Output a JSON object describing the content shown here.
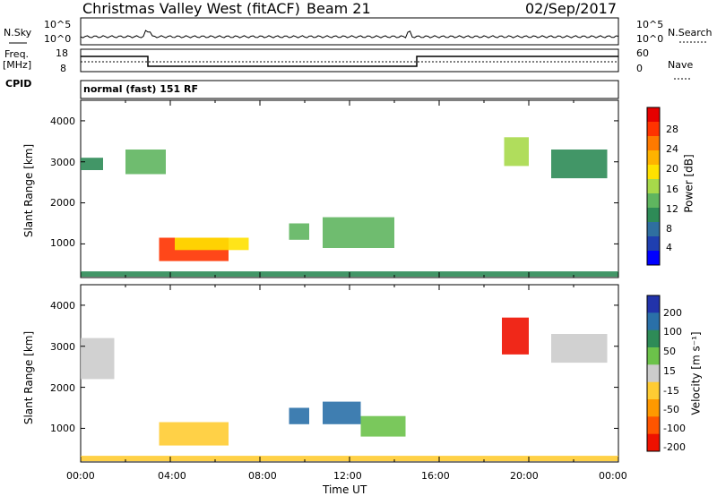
{
  "header": {
    "station": "Christmas Valley West (fitACF)",
    "beam": "Beam 21",
    "date": "02/Sep/2017"
  },
  "strip_panels": {
    "nsky_label": "N.Sky",
    "nsearch_label": "N.Search",
    "freq_label_line1": "Freq.",
    "freq_label_line2": "[MHz]",
    "nave_label": "Nave",
    "cpid_label": "CPID",
    "cpid_value": "normal (fast) 151 RF",
    "noise_ticks": [
      "10^5",
      "10^0"
    ],
    "freq_ticks": [
      "18",
      "8"
    ],
    "nave_ticks": [
      "60",
      "0"
    ]
  },
  "axes": {
    "ylabel": "Slant Range [km]",
    "xlabel": "Time UT",
    "y_ticks": [
      "4000",
      "3000",
      "2000",
      "1000"
    ],
    "x_ticks": [
      "00:00",
      "04:00",
      "08:00",
      "12:00",
      "16:00",
      "20:00",
      "00:00"
    ]
  },
  "colorbars": {
    "power": {
      "label": "Power [dB]",
      "ticks": [
        "28",
        "24",
        "20",
        "16",
        "12",
        "8",
        "4"
      ],
      "colors": [
        "#e60000",
        "#ff3300",
        "#ff7a00",
        "#ffb300",
        "#ffe100",
        "#a7d94a",
        "#5fb55f",
        "#2e8b57",
        "#2f6fa0",
        "#1f3fb0",
        "#0000ff"
      ]
    },
    "velocity": {
      "label": "Velocity [m s⁻¹]",
      "ticks": [
        "200",
        "100",
        "50",
        "15",
        "-15",
        "-50",
        "-100",
        "-200"
      ],
      "colors": [
        "#2233aa",
        "#2a70a8",
        "#2e8b57",
        "#6cc24a",
        "#cccccc",
        "#ffcc33",
        "#ff9900",
        "#ff5500",
        "#ee1100"
      ]
    }
  },
  "chart_data": [
    {
      "type": "heatmap",
      "name": "power",
      "x_range": [
        "00:00",
        "24:00"
      ],
      "ylim": [
        180,
        4500
      ],
      "value_range": [
        0,
        30
      ],
      "regions": [
        {
          "t0": 3.5,
          "t1": 6.6,
          "r0": 580,
          "r1": 1150,
          "value": 26
        },
        {
          "t0": 4.2,
          "t1": 7.5,
          "r0": 850,
          "r1": 1150,
          "value": 19
        },
        {
          "t0": 9.3,
          "t1": 10.2,
          "r0": 1100,
          "r1": 1500,
          "value": 12
        },
        {
          "t0": 10.8,
          "t1": 14.0,
          "r0": 900,
          "r1": 1650,
          "value": 13
        },
        {
          "t0": 2.0,
          "t1": 3.8,
          "r0": 2700,
          "r1": 3300,
          "value": 11
        },
        {
          "t0": 0.0,
          "t1": 1.0,
          "r0": 2800,
          "r1": 3100,
          "value": 9
        },
        {
          "t0": 18.9,
          "t1": 20.0,
          "r0": 2900,
          "r1": 3600,
          "value": 14
        },
        {
          "t0": 21.0,
          "t1": 23.5,
          "r0": 2600,
          "r1": 3300,
          "value": 10
        },
        {
          "t0": 0.0,
          "t1": 24.0,
          "r0": 200,
          "r1": 330,
          "value": 10
        }
      ]
    },
    {
      "type": "heatmap",
      "name": "velocity",
      "x_range": [
        "00:00",
        "24:00"
      ],
      "ylim": [
        180,
        4500
      ],
      "value_range": [
        -200,
        200
      ],
      "regions": [
        {
          "t0": 3.5,
          "t1": 6.6,
          "r0": 580,
          "r1": 1150,
          "value": -40
        },
        {
          "t0": 9.3,
          "t1": 10.2,
          "r0": 1100,
          "r1": 1500,
          "value": 150
        },
        {
          "t0": 10.8,
          "t1": 12.5,
          "r0": 1100,
          "r1": 1650,
          "value": 120
        },
        {
          "t0": 12.5,
          "t1": 14.5,
          "r0": 800,
          "r1": 1300,
          "value": 30
        },
        {
          "t0": 18.8,
          "t1": 20.0,
          "r0": 2800,
          "r1": 3700,
          "value": -200
        },
        {
          "t0": 21.0,
          "t1": 23.5,
          "r0": 2600,
          "r1": 3300,
          "value": 5
        },
        {
          "t0": 0.0,
          "t1": 1.5,
          "r0": 2200,
          "r1": 3200,
          "value": 5
        },
        {
          "t0": 0.0,
          "t1": 24.0,
          "r0": 200,
          "r1": 330,
          "value": -40
        }
      ]
    }
  ]
}
